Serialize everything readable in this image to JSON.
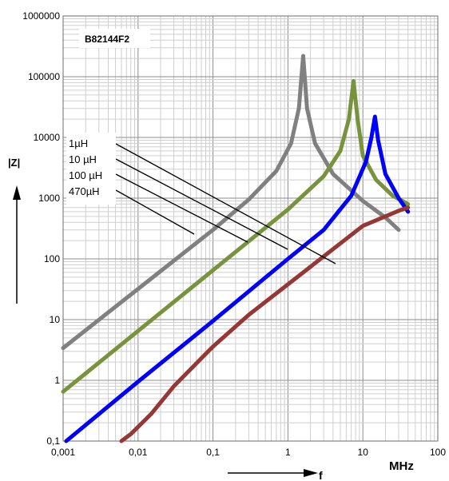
{
  "chart_data": {
    "type": "line",
    "title": "B82144F2",
    "xlabel": "f",
    "xunit": "MHz",
    "ylabel": "|Z|",
    "xscale": "log",
    "yscale": "log",
    "xlim": [
      0.001,
      100
    ],
    "ylim": [
      0.1,
      1000000
    ],
    "x_tick_labels": [
      "0,001",
      "0,01",
      "0,1",
      "1",
      "10",
      "100"
    ],
    "y_tick_labels": [
      "0,1",
      "1",
      "10",
      "100",
      "1000",
      "10000",
      "100000",
      "1000000"
    ],
    "grid": true,
    "series": [
      {
        "name": "470µH",
        "color": "#808080",
        "points": [
          [
            0.001,
            3.4
          ],
          [
            0.01,
            32
          ],
          [
            0.1,
            300
          ],
          [
            0.3,
            950
          ],
          [
            0.7,
            2800
          ],
          [
            1.1,
            8000
          ],
          [
            1.4,
            30000
          ],
          [
            1.6,
            220000
          ],
          [
            1.8,
            30000
          ],
          [
            2.3,
            8000
          ],
          [
            4,
            2500
          ],
          [
            10,
            900
          ],
          [
            20,
            480
          ],
          [
            30,
            300
          ]
        ]
      },
      {
        "name": "100 µH",
        "color": "#77933c",
        "points": [
          [
            0.001,
            0.65
          ],
          [
            0.01,
            6.5
          ],
          [
            0.1,
            65
          ],
          [
            1,
            650
          ],
          [
            3,
            2300
          ],
          [
            5,
            6000
          ],
          [
            6.5,
            20000
          ],
          [
            7.5,
            85000
          ],
          [
            8.5,
            20000
          ],
          [
            10,
            5000
          ],
          [
            15,
            2000
          ],
          [
            25,
            1100
          ],
          [
            40,
            800
          ]
        ]
      },
      {
        "name": "10 µH",
        "color": "#0000ff",
        "points": [
          [
            0.0011,
            0.1
          ],
          [
            0.01,
            0.95
          ],
          [
            0.1,
            9.5
          ],
          [
            1,
            100
          ],
          [
            3,
            300
          ],
          [
            7,
            1100
          ],
          [
            11,
            4000
          ],
          [
            13,
            10000
          ],
          [
            14.5,
            22000
          ],
          [
            16,
            9000
          ],
          [
            20,
            2500
          ],
          [
            30,
            1000
          ],
          [
            40,
            600
          ]
        ]
      },
      {
        "name": "1µH",
        "color": "#953735",
        "points": [
          [
            0.006,
            0.1
          ],
          [
            0.008,
            0.13
          ],
          [
            0.015,
            0.28
          ],
          [
            0.03,
            0.8
          ],
          [
            0.1,
            3.6
          ],
          [
            0.3,
            12
          ],
          [
            1,
            38
          ],
          [
            3,
            110
          ],
          [
            10,
            350
          ],
          [
            30,
            620
          ],
          [
            40,
            700
          ]
        ]
      }
    ],
    "annotations": {
      "labels": [
        "1µH",
        "10 µH",
        "100 µH",
        "470µH"
      ]
    }
  }
}
